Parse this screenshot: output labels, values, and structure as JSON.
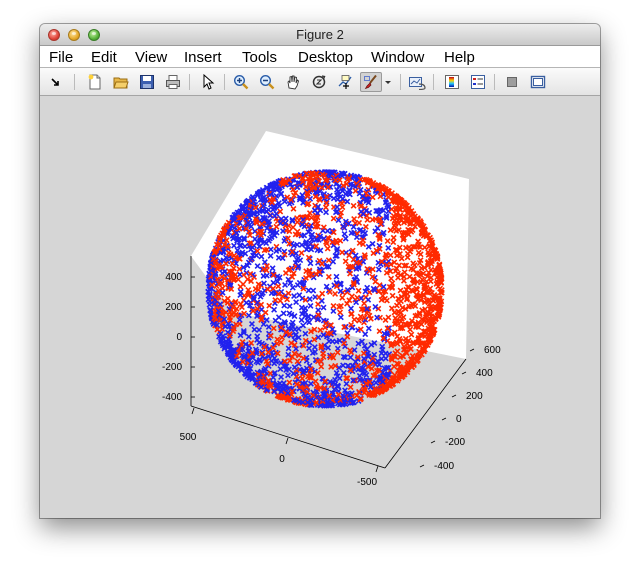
{
  "window": {
    "title": "Figure 2",
    "buttons": [
      "close",
      "minimize",
      "zoom"
    ]
  },
  "menubar": {
    "items": [
      "File",
      "Edit",
      "View",
      "Insert",
      "Tools",
      "Desktop",
      "Window",
      "Help"
    ]
  },
  "toolbar": {
    "tools": [
      {
        "name": "dock-arrow-icon"
      },
      {
        "name": "new-figure-icon"
      },
      {
        "name": "open-file-icon"
      },
      {
        "name": "save-figure-icon"
      },
      {
        "name": "print-figure-icon"
      },
      {
        "name": "edit-plot-pointer-icon"
      },
      {
        "name": "zoom-in-icon"
      },
      {
        "name": "zoom-out-icon"
      },
      {
        "name": "pan-hand-icon"
      },
      {
        "name": "rotate-3d-icon"
      },
      {
        "name": "data-cursor-icon"
      },
      {
        "name": "brush-icon",
        "pressed": true
      },
      {
        "name": "brush-dropdown-icon"
      },
      {
        "name": "link-plot-icon"
      },
      {
        "name": "insert-colorbar-icon"
      },
      {
        "name": "insert-legend-icon"
      },
      {
        "name": "hide-plot-tools-icon"
      },
      {
        "name": "show-plot-tools-icon"
      }
    ]
  },
  "chart_data": {
    "type": "scatter",
    "projection": "3d",
    "title": "",
    "xlabel": "",
    "ylabel": "",
    "zlabel": "",
    "grid": false,
    "legend": "none",
    "z_ticks": [
      "400",
      "200",
      "0",
      "-200",
      "-400"
    ],
    "y_ticks": [
      "600",
      "400",
      "200",
      "0",
      "-200",
      "-400"
    ],
    "x_ticks": [
      "500",
      "0",
      "-500"
    ],
    "xlim": [
      -500,
      500
    ],
    "ylim": [
      -400,
      600
    ],
    "zlim": [
      -400,
      400
    ],
    "point_shape": "sphere-surface",
    "center": [
      0,
      100,
      0
    ],
    "radius": 450,
    "series": [
      {
        "color": "#ff2a00",
        "marker": "x"
      },
      {
        "color": "#2222ee",
        "marker": "x"
      }
    ]
  }
}
